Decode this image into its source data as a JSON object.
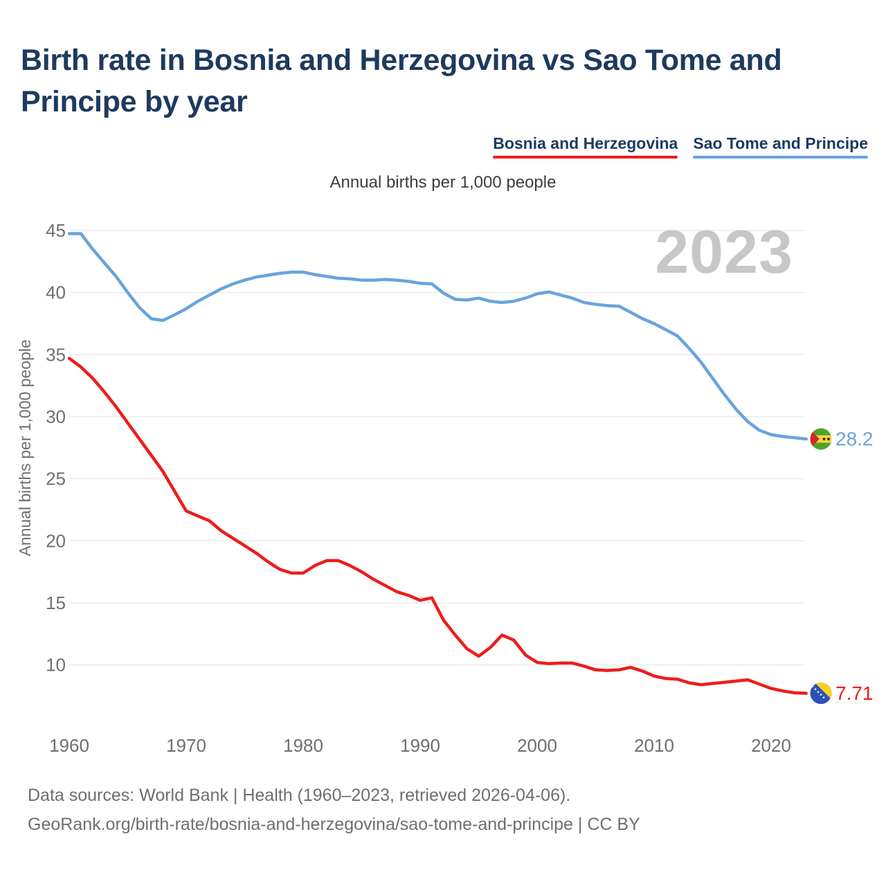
{
  "header": {
    "title_line1": "Birth rate in Bosnia and Herzegovina vs Sao Tome and",
    "title_line2": "Principe by year"
  },
  "watermark": {
    "text": "2023"
  },
  "footer": {
    "line1": "Data sources: World Bank | Health (1960–2023, retrieved 2026-04-06).",
    "line2": "GeoRank.org/birth-rate/bosnia-and-herzegovina/sao-tome-and-principe | CC BY"
  },
  "chart_data": {
    "type": "line",
    "title": "Birth rate in Bosnia and Herzegovina vs Sao Tome and Principe by year",
    "subtitle": "Annual births per 1,000 people",
    "ylabel": "Annual births per 1,000 people",
    "xlabel": "",
    "grid": "horizontal",
    "legend_position": "top-right",
    "xlim": [
      1960,
      2023
    ],
    "ylim": [
      7,
      45
    ],
    "xticks": [
      1960,
      1970,
      1980,
      1990,
      2000,
      2010,
      2020
    ],
    "yticks": [
      10,
      15,
      20,
      25,
      30,
      35,
      40,
      45
    ],
    "years": [
      1960,
      1961,
      1962,
      1963,
      1964,
      1965,
      1966,
      1967,
      1968,
      1969,
      1970,
      1971,
      1972,
      1973,
      1974,
      1975,
      1976,
      1977,
      1978,
      1979,
      1980,
      1981,
      1982,
      1983,
      1984,
      1985,
      1986,
      1987,
      1988,
      1989,
      1990,
      1991,
      1992,
      1993,
      1994,
      1995,
      1996,
      1997,
      1998,
      1999,
      2000,
      2001,
      2002,
      2003,
      2004,
      2005,
      2006,
      2007,
      2008,
      2009,
      2010,
      2011,
      2012,
      2013,
      2014,
      2015,
      2016,
      2017,
      2018,
      2019,
      2020,
      2021,
      2022,
      2023
    ],
    "series": [
      {
        "name": "Bosnia and Herzegovina",
        "color": "#ee1c1c",
        "end_label": "7.71",
        "flag": "bosnia-and-herzegovina",
        "values": [
          34.7,
          34.0,
          33.1,
          32.0,
          30.8,
          29.5,
          28.2,
          26.9,
          25.6,
          24.0,
          22.4,
          22.0,
          21.6,
          20.8,
          20.2,
          19.6,
          19.0,
          18.3,
          17.7,
          17.4,
          17.4,
          18.0,
          18.4,
          18.4,
          18.0,
          17.5,
          16.9,
          16.4,
          15.9,
          15.6,
          15.2,
          15.4,
          13.6,
          12.4,
          11.3,
          10.7,
          11.4,
          12.4,
          12.0,
          10.8,
          10.2,
          10.1,
          10.15,
          10.15,
          9.9,
          9.6,
          9.55,
          9.6,
          9.8,
          9.5,
          9.1,
          8.9,
          8.85,
          8.55,
          8.4,
          8.5,
          8.6,
          8.7,
          8.8,
          8.45,
          8.1,
          7.9,
          7.75,
          7.71
        ]
      },
      {
        "name": "Sao Tome and Principe",
        "color": "#69a3de",
        "end_label": "28.2",
        "flag": "sao-tome-and-principe",
        "values": [
          44.75,
          44.75,
          43.5,
          42.4,
          41.3,
          40.0,
          38.8,
          37.9,
          37.75,
          38.2,
          38.7,
          39.3,
          39.8,
          40.3,
          40.7,
          41.0,
          41.25,
          41.4,
          41.55,
          41.65,
          41.65,
          41.45,
          41.3,
          41.15,
          41.1,
          41.0,
          41.0,
          41.05,
          41.0,
          40.9,
          40.75,
          40.7,
          39.95,
          39.45,
          39.4,
          39.55,
          39.3,
          39.2,
          39.3,
          39.55,
          39.9,
          40.05,
          39.8,
          39.55,
          39.2,
          39.05,
          38.95,
          38.9,
          38.4,
          37.9,
          37.5,
          37.0,
          36.5,
          35.5,
          34.4,
          33.1,
          31.8,
          30.6,
          29.6,
          28.9,
          28.55,
          28.4,
          28.3,
          28.2
        ]
      }
    ],
    "flag_colors": {
      "bosnia_blue": "#2a52b8",
      "bosnia_yellow": "#fccf1d",
      "bosnia_star": "#ffffff",
      "stp_green": "#4ea42c",
      "stp_yellow": "#fdd93c",
      "stp_red": "#d8232a",
      "stp_star": "#1a1a1a"
    },
    "axis_text_color": "#6f6f6f",
    "gridline_color": "#ebebeb"
  }
}
